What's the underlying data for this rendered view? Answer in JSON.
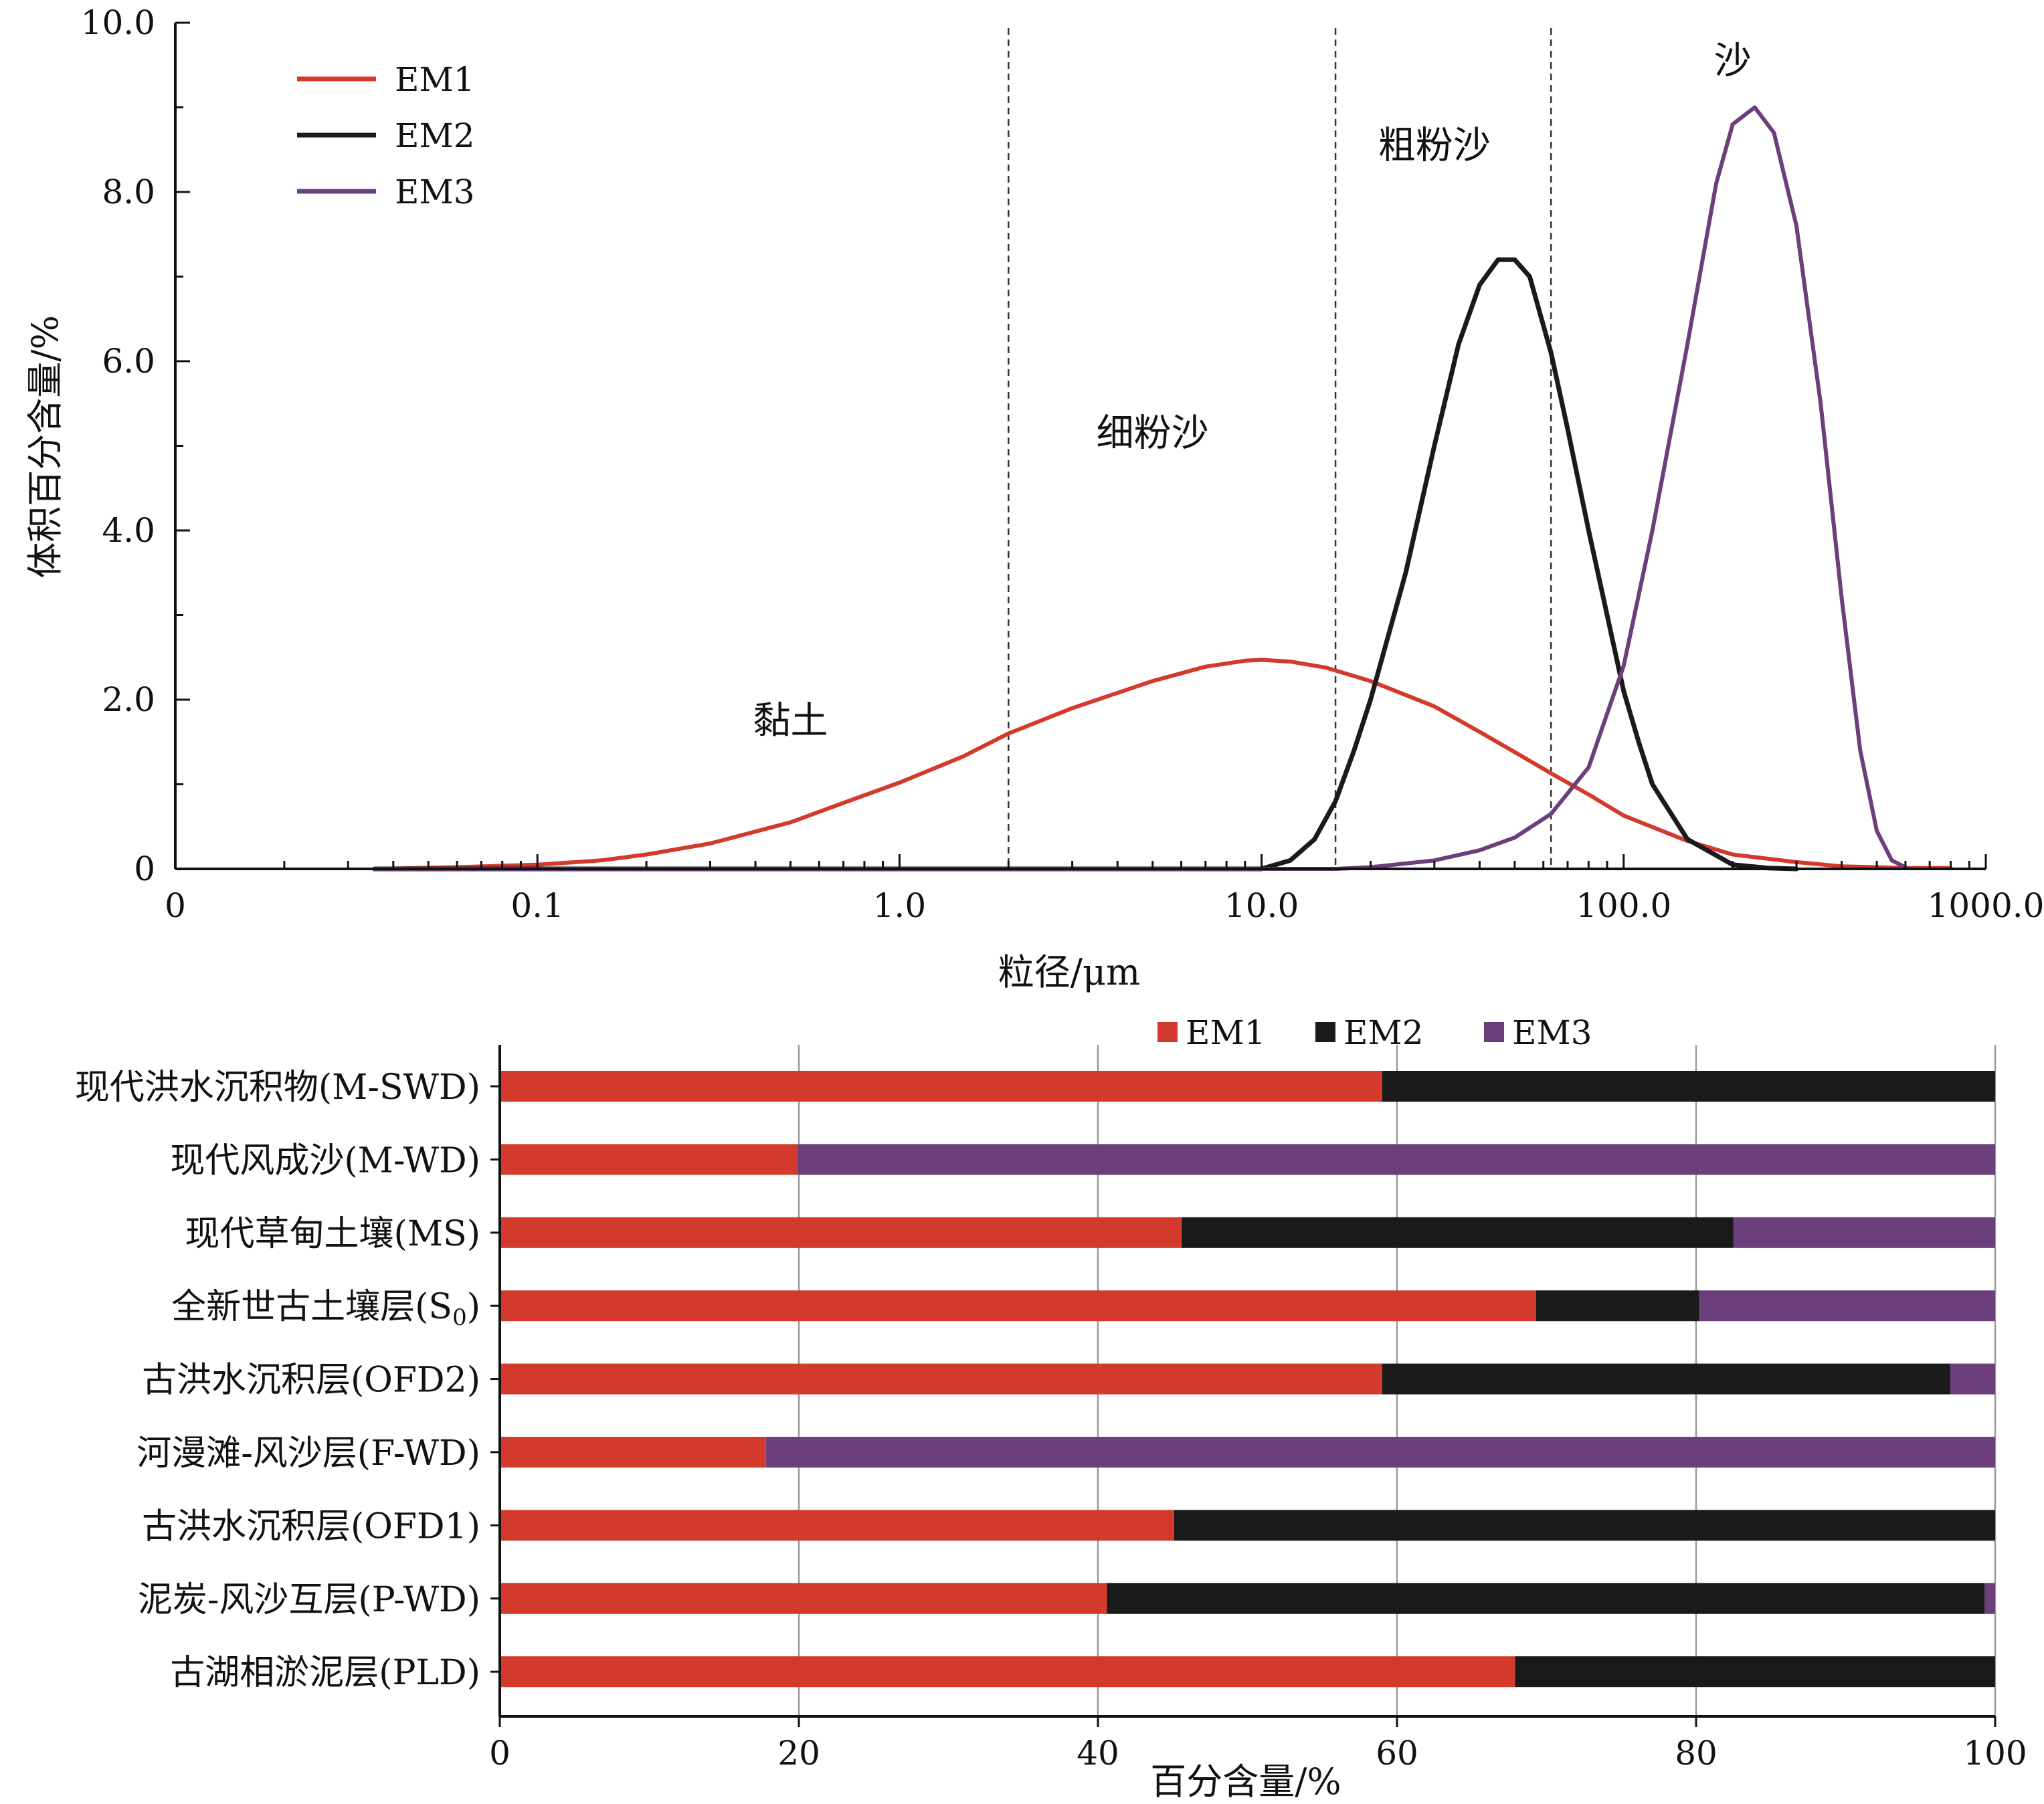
{
  "chart_data": [
    {
      "type": "line",
      "xlabel": "粒径/μm",
      "ylabel": "体积百分含量/%",
      "xscale": "log",
      "xlim": [
        0.01,
        1000
      ],
      "ylim": [
        0,
        10
      ],
      "x_tick_labels": [
        {
          "value": 0.01,
          "label": "0"
        },
        {
          "value": 0.1,
          "label": "0.1"
        },
        {
          "value": 1,
          "label": "1.0"
        },
        {
          "value": 10,
          "label": "10.0"
        },
        {
          "value": 100,
          "label": "100.0"
        },
        {
          "value": 1000,
          "label": "1000.0"
        }
      ],
      "y_tick_labels": [
        {
          "value": 0,
          "label": "0"
        },
        {
          "value": 2,
          "label": "2.0"
        },
        {
          "value": 4,
          "label": "4.0"
        },
        {
          "value": 6,
          "label": "6.0"
        },
        {
          "value": 8,
          "label": "8.0"
        },
        {
          "value": 10,
          "label": "10.0"
        }
      ],
      "grid": false,
      "legend_position": "top-left",
      "boundaries_um": [
        2,
        16,
        63
      ],
      "zone_labels": [
        {
          "text": "黏土",
          "x": 0.5,
          "y": 1.6
        },
        {
          "text": "细粉沙",
          "x": 5,
          "y": 5.0
        },
        {
          "text": "粗粉沙",
          "x": 30,
          "y": 8.4
        },
        {
          "text": "沙",
          "x": 200,
          "y": 9.4
        }
      ],
      "series": [
        {
          "name": "EM1",
          "color": "#d33a2c",
          "x": [
            0.0355,
            0.06,
            0.1,
            0.15,
            0.2,
            0.3,
            0.5,
            0.7,
            1.0,
            1.5,
            2.0,
            3.0,
            5.0,
            7.0,
            9.0,
            10.0,
            12.0,
            15.0,
            20.0,
            30.0,
            40.0,
            50.0,
            63.0,
            80.0,
            100.0,
            150.0,
            200.0,
            300.0,
            400.0,
            500.0,
            600.0,
            700.0,
            800.0
          ],
          "y": [
            0,
            0.02,
            0.05,
            0.1,
            0.17,
            0.3,
            0.55,
            0.78,
            1.02,
            1.33,
            1.6,
            1.9,
            2.22,
            2.39,
            2.46,
            2.47,
            2.45,
            2.38,
            2.22,
            1.92,
            1.62,
            1.38,
            1.13,
            0.88,
            0.63,
            0.33,
            0.17,
            0.08,
            0.03,
            0.02,
            0.01,
            0.01,
            0.01
          ]
        },
        {
          "name": "EM2",
          "color": "#1a1a1a",
          "x": [
            0.0355,
            1.0,
            10.0,
            12.0,
            14.0,
            16.0,
            18.0,
            20.0,
            25.0,
            30.0,
            35.0,
            40.0,
            45.0,
            50.0,
            55.0,
            63.0,
            70.0,
            80.0,
            90.0,
            100.0,
            110.0,
            120.0,
            150.0,
            200.0,
            250.0,
            300.0
          ],
          "y": [
            0,
            0,
            0,
            0.1,
            0.35,
            0.8,
            1.4,
            2.0,
            3.5,
            5.0,
            6.2,
            6.9,
            7.2,
            7.2,
            7.0,
            6.1,
            5.2,
            4.0,
            3.0,
            2.1,
            1.5,
            1.0,
            0.35,
            0.05,
            0.01,
            0
          ],
          "linestyle": "thick"
        },
        {
          "name": "EM3",
          "color": "#6a3f7c",
          "x": [
            0.0355,
            10.0,
            16.0,
            20.0,
            30.0,
            40.0,
            50.0,
            63.0,
            80.0,
            100.0,
            120.0,
            150.0,
            180.0,
            200.0,
            230.0,
            260.0,
            300.0,
            350.0,
            400.0,
            450.0,
            500.0,
            550.0,
            600.0
          ],
          "y": [
            0,
            0,
            0,
            0.02,
            0.1,
            0.22,
            0.37,
            0.65,
            1.2,
            2.4,
            4.0,
            6.2,
            8.1,
            8.8,
            9.0,
            8.7,
            7.6,
            5.5,
            3.2,
            1.4,
            0.45,
            0.1,
            0.02
          ]
        }
      ]
    },
    {
      "type": "bar",
      "orientation": "horizontal",
      "stacked": true,
      "xlabel": "百分含量/%",
      "xlim": [
        0,
        100
      ],
      "x_tick_labels": [
        "0",
        "20",
        "40",
        "60",
        "80",
        "100"
      ],
      "grid": true,
      "legend_position": "top-right",
      "categories": [
        "现代洪水沉积物(M-SWD)",
        "现代风成沙(M-WD)",
        "现代草甸土壤(MS)",
        "全新世古土壤层(S",
        "古洪水沉积层(OFD2)",
        "河漫滩-风沙层(F-WD)",
        "古洪水沉积层(OFD1)",
        "泥炭-风沙互层(P-WD)",
        "古湖相淤泥层(PLD)"
      ],
      "category_subscripts": [
        "",
        "",
        "",
        "0",
        "",
        "",
        "",
        "",
        ""
      ],
      "category_suffixes": [
        "",
        "",
        "",
        ")",
        "",
        "",
        "",
        "",
        ""
      ],
      "series": [
        {
          "name": "EM1",
          "color": "#d33a2c",
          "values": [
            59.0,
            19.9,
            45.6,
            69.3,
            59.0,
            17.8,
            45.1,
            40.6,
            67.9
          ]
        },
        {
          "name": "EM2",
          "color": "#1a1a1a",
          "values": [
            41.0,
            0,
            36.9,
            10.9,
            38.0,
            0,
            54.9,
            58.7,
            32.1
          ]
        },
        {
          "name": "EM3",
          "color": "#6a3f7c",
          "values": [
            0,
            80.1,
            17.5,
            19.8,
            3.0,
            82.2,
            0,
            0.7,
            0
          ]
        }
      ]
    }
  ]
}
